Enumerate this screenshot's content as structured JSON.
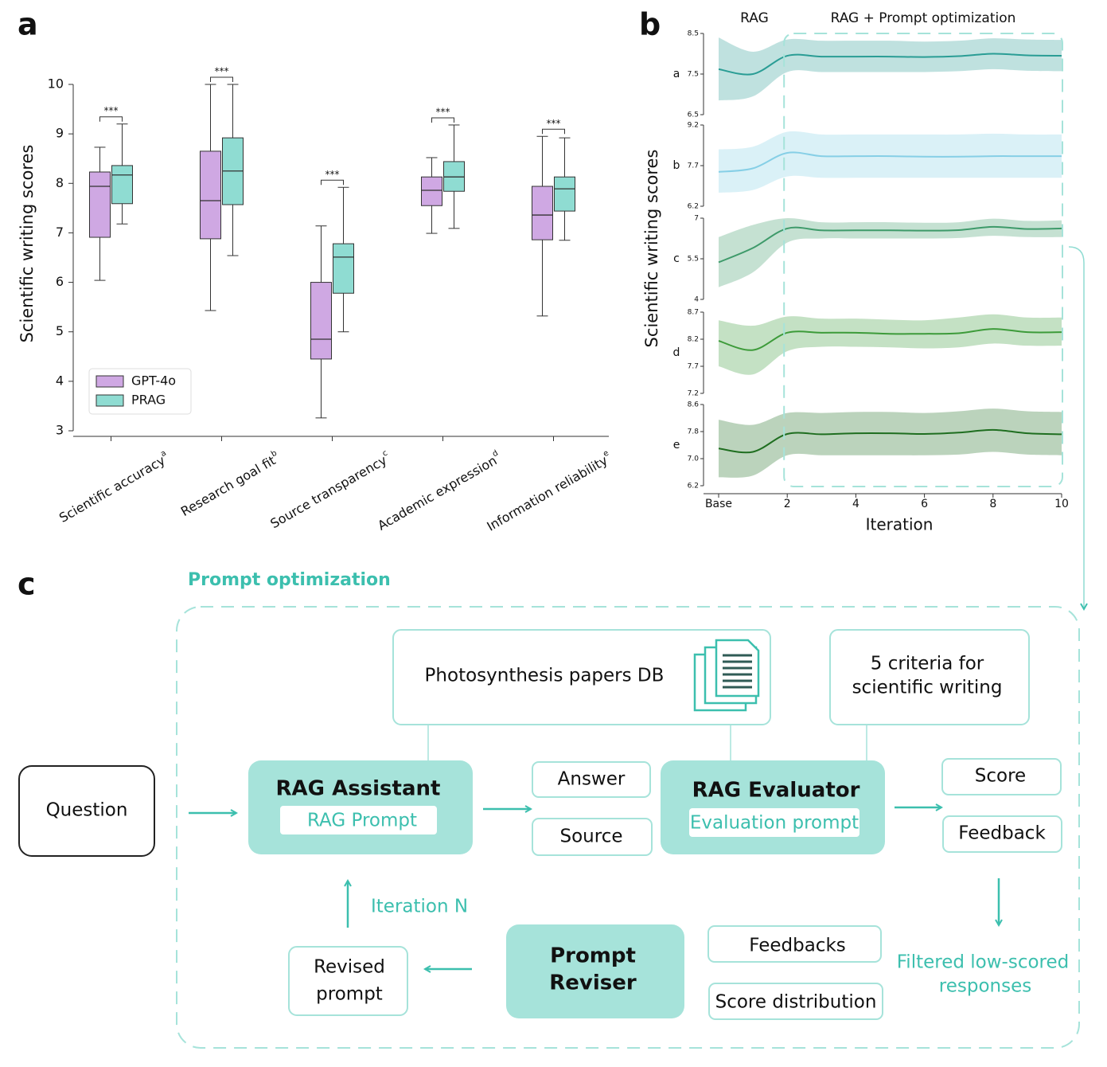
{
  "panel_labels": [
    "a",
    "b",
    "c"
  ],
  "chart_data": [
    {
      "type": "box",
      "ylabel": "Scientific writing scores",
      "categories": [
        "Scientific accuracy",
        "Research goal fit",
        "Source transparency",
        "Academic expression",
        "Information reliability"
      ],
      "category_superscripts": [
        "a",
        "b",
        "c",
        "d",
        "e"
      ],
      "annotations": [
        "***",
        "***",
        "***",
        "***",
        "***"
      ],
      "ylim": [
        3,
        10
      ],
      "yticks": [
        3,
        4,
        5,
        6,
        7,
        8,
        9,
        10
      ],
      "legend": "lower left",
      "series": [
        {
          "name": "GPT-4o",
          "color": "#cfa8e3",
          "whisker_low": [
            6.04,
            5.43,
            3.26,
            6.99,
            5.32
          ],
          "q1": [
            6.91,
            6.88,
            4.45,
            7.55,
            6.86
          ],
          "median": [
            7.94,
            7.65,
            4.85,
            7.86,
            7.36
          ],
          "q3": [
            8.23,
            8.65,
            6.0,
            8.13,
            7.94
          ],
          "whisker_high": [
            8.73,
            10,
            7.14,
            8.52,
            8.95
          ]
        },
        {
          "name": "PRAG",
          "color": "#8fdcd2",
          "whisker_low": [
            7.18,
            6.54,
            5.0,
            7.09,
            6.85
          ],
          "q1": [
            7.59,
            7.57,
            5.78,
            7.84,
            7.44
          ],
          "median": [
            8.17,
            8.25,
            6.51,
            8.13,
            7.89
          ],
          "q3": [
            8.36,
            8.92,
            6.78,
            8.44,
            8.13
          ],
          "whisker_high": [
            9.2,
            10,
            7.92,
            9.18,
            8.92
          ]
        }
      ]
    },
    {
      "type": "line",
      "ylabel": "Scientific writing scores",
      "xlabel": "Iteration",
      "region_labels": [
        "RAG",
        "RAG + Prompt optimization"
      ],
      "x": [
        0,
        1,
        2,
        3,
        4,
        5,
        6,
        7,
        8,
        9,
        10
      ],
      "xlim": [
        0,
        10
      ],
      "xticks": [
        {
          "value": 0,
          "label": "Base"
        },
        2,
        4,
        6,
        8,
        10
      ],
      "panels": [
        {
          "label": "a",
          "color": "#2a9d95",
          "ylim": [
            6.5,
            8.5
          ],
          "yticks": [
            6.5,
            7.5,
            8.5
          ],
          "values": [
            7.62,
            7.5,
            7.95,
            7.93,
            7.93,
            7.93,
            7.92,
            7.94,
            8.0,
            7.96,
            7.95
          ],
          "lower": [
            6.85,
            6.95,
            7.55,
            7.55,
            7.55,
            7.55,
            7.55,
            7.57,
            7.62,
            7.58,
            7.57
          ],
          "upper": [
            8.4,
            8.05,
            8.35,
            8.32,
            8.32,
            8.32,
            8.3,
            8.32,
            8.38,
            8.35,
            8.34
          ]
        },
        {
          "label": "b",
          "color": "#86cfe6",
          "ylim": [
            6.2,
            9.2
          ],
          "yticks": [
            6.2,
            7.7,
            9.2
          ],
          "values": [
            7.47,
            7.6,
            8.17,
            8.05,
            8.05,
            8.05,
            8.03,
            8.03,
            8.05,
            8.05,
            8.05
          ],
          "lower": [
            6.7,
            6.8,
            7.3,
            7.25,
            7.25,
            7.25,
            7.25,
            7.25,
            7.25,
            7.25,
            7.25
          ],
          "upper": [
            8.3,
            8.4,
            8.95,
            8.85,
            8.85,
            8.85,
            8.85,
            8.85,
            8.88,
            8.85,
            8.85
          ]
        },
        {
          "label": "c",
          "color": "#3e9a6a",
          "ylim": [
            4,
            7
          ],
          "yticks": [
            4,
            5.5,
            7
          ],
          "values": [
            5.37,
            5.9,
            6.62,
            6.55,
            6.55,
            6.55,
            6.54,
            6.56,
            6.68,
            6.6,
            6.62
          ],
          "lower": [
            4.45,
            5.0,
            6.1,
            6.25,
            6.25,
            6.25,
            6.25,
            6.27,
            6.35,
            6.3,
            6.3
          ],
          "upper": [
            6.3,
            6.75,
            7.0,
            6.85,
            6.85,
            6.85,
            6.83,
            6.85,
            6.98,
            6.9,
            6.92
          ]
        },
        {
          "label": "d",
          "color": "#3d9b3a",
          "ylim": [
            7.2,
            8.7
          ],
          "yticks": [
            7.2,
            7.7,
            8.2,
            8.7
          ],
          "values": [
            8.17,
            8.0,
            8.32,
            8.32,
            8.32,
            8.3,
            8.3,
            8.31,
            8.39,
            8.33,
            8.33
          ],
          "lower": [
            7.7,
            7.55,
            7.98,
            8.06,
            8.06,
            8.05,
            8.03,
            8.05,
            8.12,
            8.08,
            8.08
          ],
          "upper": [
            8.55,
            8.45,
            8.62,
            8.58,
            8.58,
            8.56,
            8.55,
            8.6,
            8.66,
            8.6,
            8.6
          ]
        },
        {
          "label": "e",
          "color": "#1f6e20",
          "ylim": [
            6.2,
            8.6
          ],
          "yticks": [
            6.2,
            {
              "value": 7,
              "label": "7.0"
            },
            7.8,
            8.6
          ],
          "values": [
            7.3,
            7.2,
            7.73,
            7.72,
            7.75,
            7.75,
            7.73,
            7.77,
            7.85,
            7.75,
            7.72
          ],
          "lower": [
            6.45,
            6.5,
            7.1,
            7.1,
            7.1,
            7.1,
            7.1,
            7.12,
            7.2,
            7.12,
            7.1
          ],
          "upper": [
            8.15,
            8.0,
            8.35,
            8.35,
            8.38,
            8.38,
            8.35,
            8.4,
            8.48,
            8.4,
            8.38
          ]
        }
      ]
    }
  ],
  "diagram": {
    "title": "Prompt optimization",
    "question": "Question",
    "database": "Photosynthesis papers DB",
    "criteria": [
      "5 criteria for",
      "scientific writing"
    ],
    "assistant": {
      "title": "RAG Assistant",
      "prompt": "RAG Prompt"
    },
    "outputs": [
      "Answer",
      "Source"
    ],
    "evaluator": {
      "title": "RAG Evaluator",
      "prompt": "Evaluation prompt"
    },
    "evaluation": [
      "Score",
      "Feedback"
    ],
    "filtered": [
      "Filtered low-scored",
      "responses"
    ],
    "reviser_inputs": [
      "Feedbacks",
      "Score distribution"
    ],
    "reviser": [
      "Prompt",
      "Reviser"
    ],
    "revised": [
      "Revised",
      "prompt"
    ],
    "iteration": "Iteration N"
  }
}
